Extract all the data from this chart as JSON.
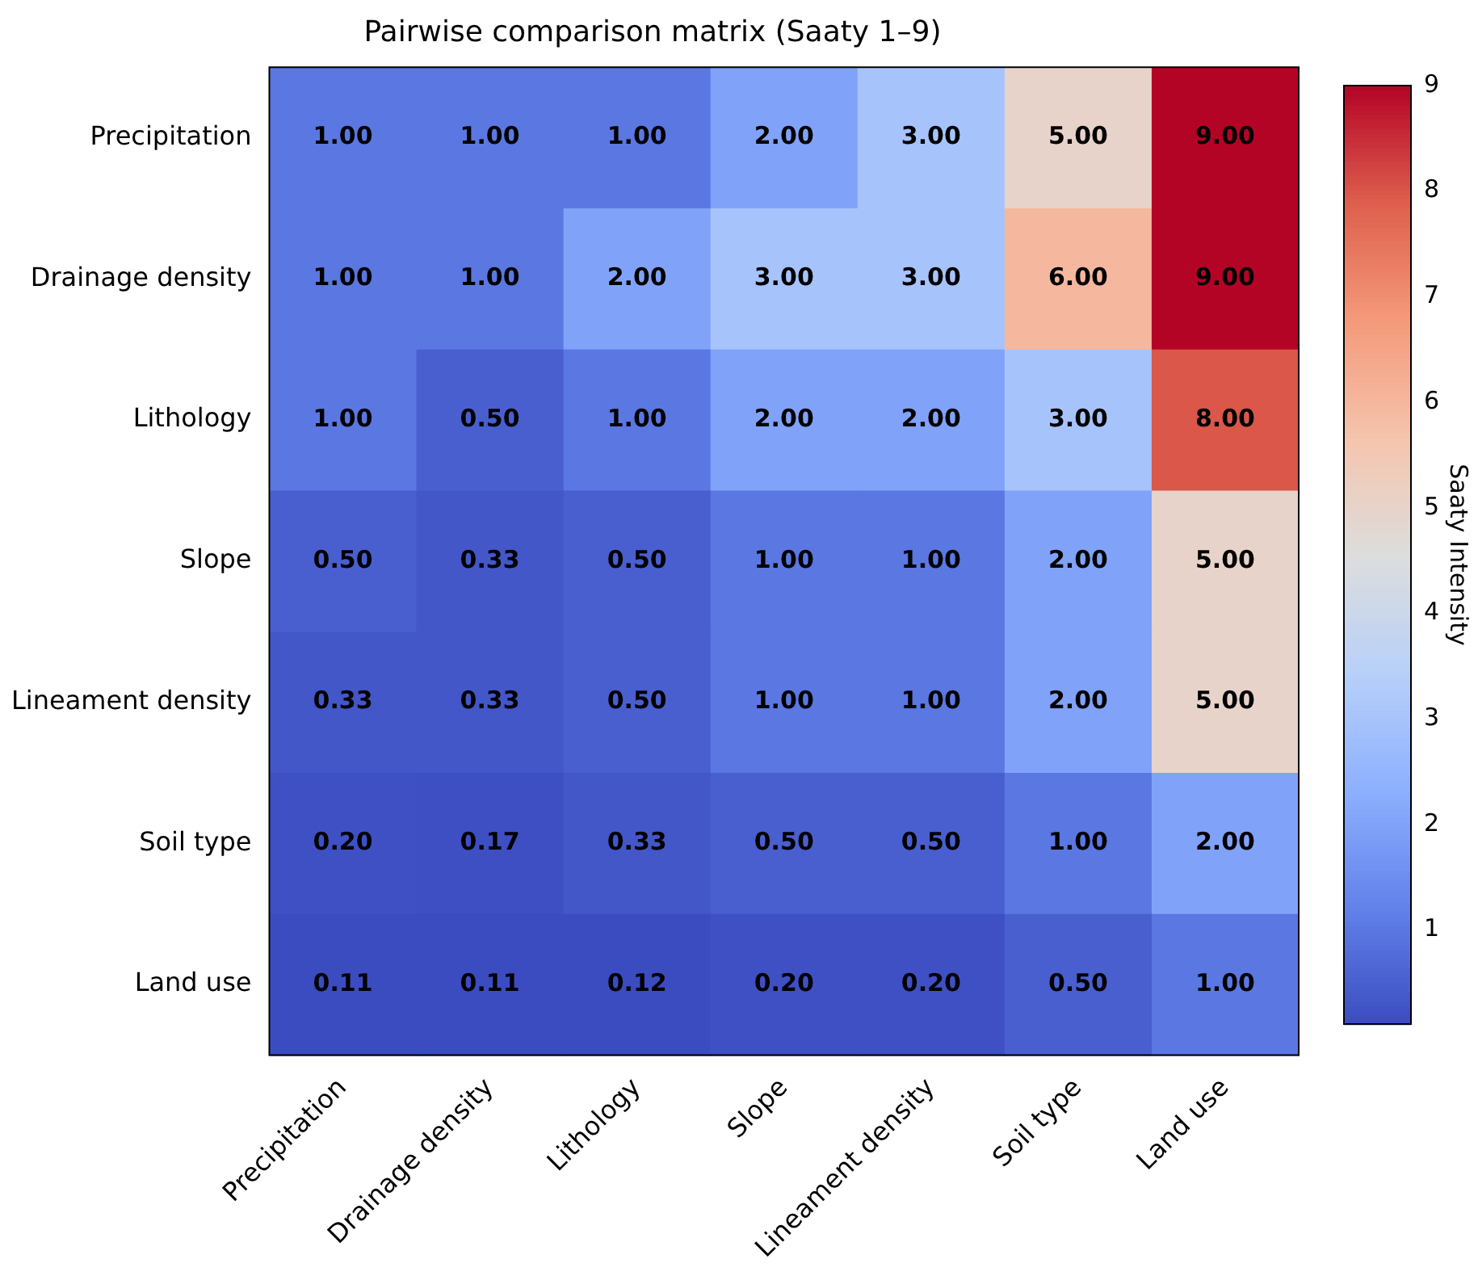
{
  "chart_data": {
    "type": "heatmap",
    "title": "Pairwise comparison matrix (Saaty 1–9)",
    "clabel": "Saaty Intensity",
    "categories": [
      "Precipitation",
      "Drainage density",
      "Lithology",
      "Slope",
      "Lineament density",
      "Soil type",
      "Land use"
    ],
    "y_categories": [
      "Precipitation",
      "Drainage density",
      "Lithology",
      "Slope",
      "Lineament density",
      "Soil type",
      "Land use"
    ],
    "cells": [
      [
        1,
        1,
        1,
        2,
        3,
        5,
        9
      ],
      [
        1,
        1,
        2,
        3,
        3,
        6,
        9
      ],
      [
        1,
        0.5,
        1,
        2,
        2,
        3,
        8
      ],
      [
        0.5,
        0.33,
        0.5,
        1,
        1,
        2,
        5
      ],
      [
        0.33,
        0.33,
        0.5,
        1,
        1,
        2,
        5
      ],
      [
        0.2,
        0.17,
        0.33,
        0.5,
        0.5,
        1,
        2
      ],
      [
        0.11,
        0.11,
        0.12,
        0.2,
        0.2,
        0.5,
        1
      ]
    ],
    "cell_labels": [
      [
        "1.00",
        "1.00",
        "1.00",
        "2.00",
        "3.00",
        "5.00",
        "9.00"
      ],
      [
        "1.00",
        "1.00",
        "2.00",
        "3.00",
        "3.00",
        "6.00",
        "9.00"
      ],
      [
        "1.00",
        "0.50",
        "1.00",
        "2.00",
        "2.00",
        "3.00",
        "8.00"
      ],
      [
        "0.50",
        "0.33",
        "0.50",
        "1.00",
        "1.00",
        "2.00",
        "5.00"
      ],
      [
        "0.33",
        "0.33",
        "0.50",
        "1.00",
        "1.00",
        "2.00",
        "5.00"
      ],
      [
        "0.20",
        "0.17",
        "0.33",
        "0.50",
        "0.50",
        "1.00",
        "2.00"
      ],
      [
        "0.11",
        "0.11",
        "0.12",
        "0.20",
        "0.20",
        "0.50",
        "1.00"
      ]
    ],
    "clim": [
      0.11,
      9
    ],
    "cticks": [
      1,
      2,
      3,
      4,
      5,
      6,
      7,
      8,
      9
    ]
  }
}
